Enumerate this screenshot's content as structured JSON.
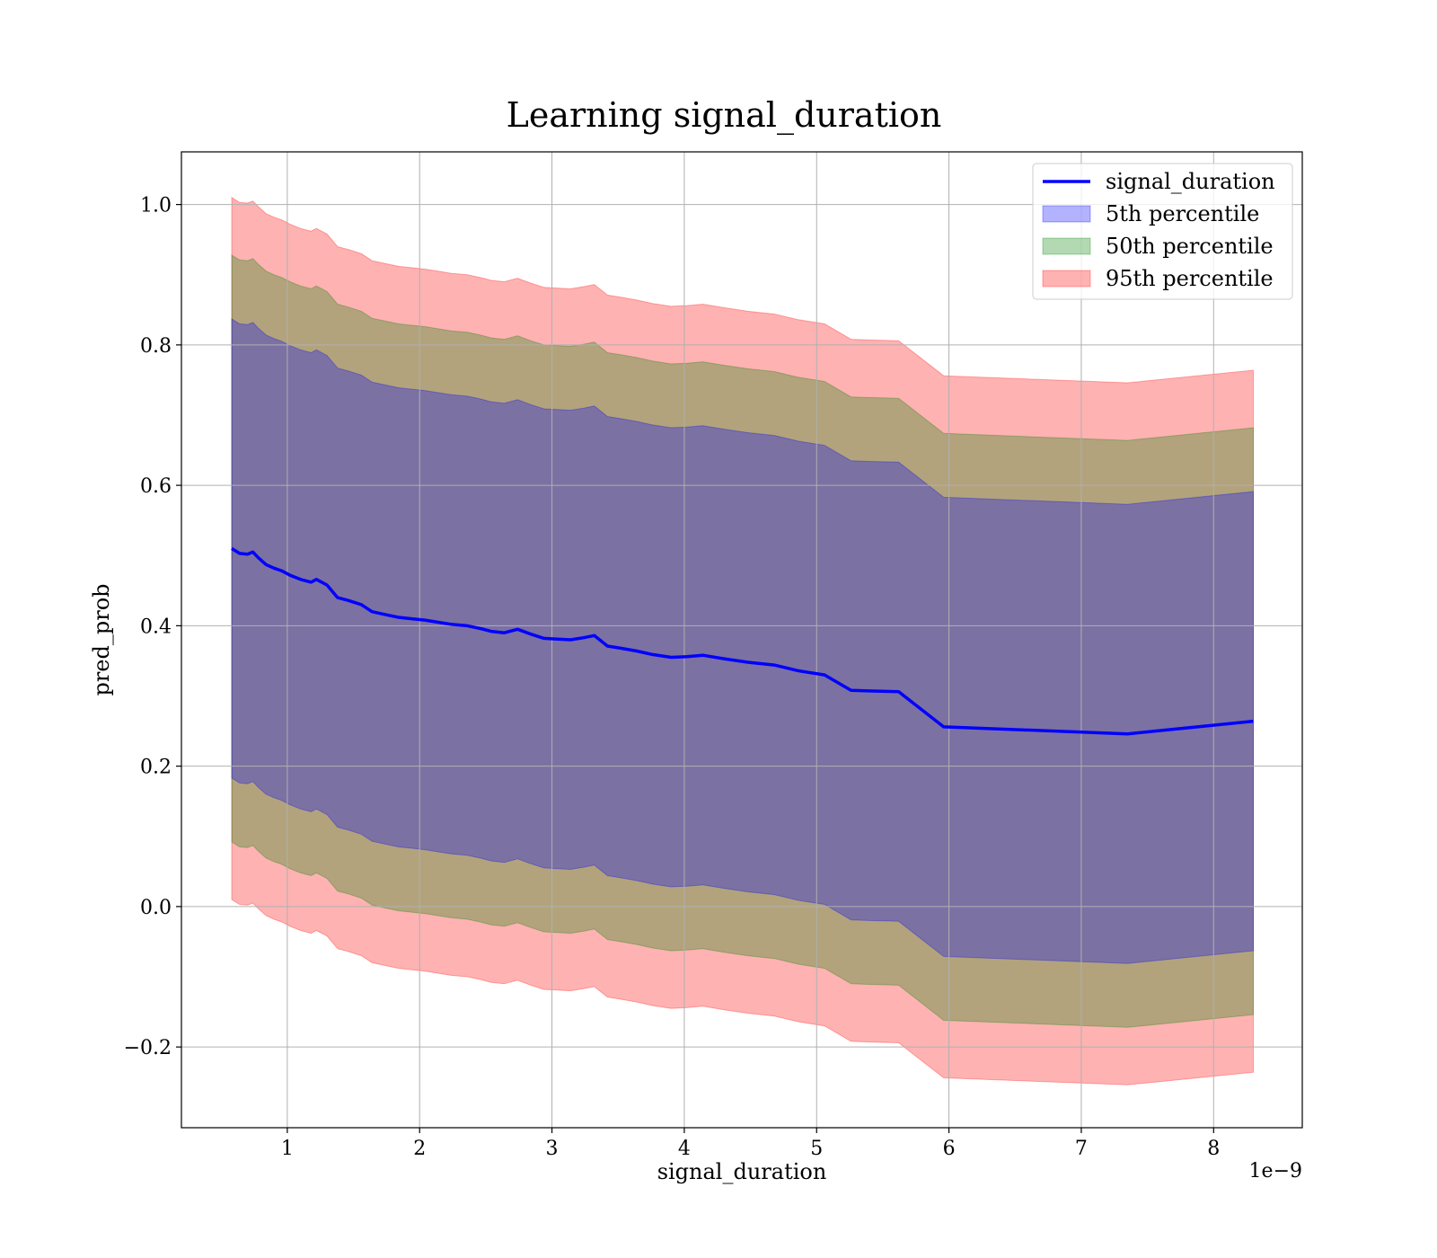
{
  "chart_data": {
    "type": "line",
    "title": "Learning signal_duration",
    "xlabel": "signal_duration",
    "ylabel": "pred_prob",
    "x_offset_text": "1e−9",
    "xlim": [
      0.2,
      8.67
    ],
    "ylim": [
      -0.315,
      1.075
    ],
    "grid": true,
    "legend_position": "top-right",
    "x_ticks": [
      {
        "value": 1,
        "label": "1"
      },
      {
        "value": 2,
        "label": "2"
      },
      {
        "value": 3,
        "label": "3"
      },
      {
        "value": 4,
        "label": "4"
      },
      {
        "value": 5,
        "label": "5"
      },
      {
        "value": 6,
        "label": "6"
      },
      {
        "value": 7,
        "label": "7"
      },
      {
        "value": 8,
        "label": "8"
      }
    ],
    "y_ticks": [
      {
        "value": -0.2,
        "label": "−0.2"
      },
      {
        "value": 0.0,
        "label": "0.0"
      },
      {
        "value": 0.2,
        "label": "0.2"
      },
      {
        "value": 0.4,
        "label": "0.4"
      },
      {
        "value": 0.6,
        "label": "0.6"
      },
      {
        "value": 0.8,
        "label": "0.8"
      },
      {
        "value": 1.0,
        "label": "1.0"
      }
    ],
    "colors": {
      "line": "#0000ff",
      "p5": "#0000ff",
      "p50": "#008000",
      "p95": "#ff0000"
    },
    "x": [
      0.58,
      0.64,
      0.7,
      0.74,
      0.78,
      0.84,
      0.9,
      0.96,
      1.02,
      1.1,
      1.18,
      1.22,
      1.3,
      1.38,
      1.46,
      1.56,
      1.64,
      1.74,
      1.84,
      1.94,
      2.04,
      2.14,
      2.24,
      2.36,
      2.46,
      2.54,
      2.64,
      2.74,
      2.84,
      2.94,
      3.04,
      3.14,
      3.24,
      3.32,
      3.42,
      3.52,
      3.64,
      3.76,
      3.9,
      4.02,
      4.14,
      4.3,
      4.48,
      4.68,
      4.86,
      5.06,
      5.26,
      5.42,
      5.62,
      5.96,
      7.35,
      8.3
    ],
    "series": [
      {
        "name": "signal_duration",
        "values": [
          0.51,
          0.503,
          0.502,
          0.505,
          0.497,
          0.487,
          0.482,
          0.478,
          0.472,
          0.466,
          0.462,
          0.466,
          0.458,
          0.44,
          0.436,
          0.43,
          0.42,
          0.416,
          0.412,
          0.41,
          0.408,
          0.405,
          0.402,
          0.4,
          0.396,
          0.392,
          0.39,
          0.395,
          0.388,
          0.382,
          0.381,
          0.38,
          0.383,
          0.386,
          0.371,
          0.368,
          0.364,
          0.359,
          0.355,
          0.356,
          0.358,
          0.353,
          0.348,
          0.344,
          0.336,
          0.33,
          0.308,
          0.307,
          0.306,
          0.256,
          0.246,
          0.264
        ]
      }
    ],
    "bands": [
      {
        "name": "5th percentile",
        "half_width": 0.327
      },
      {
        "name": "50th percentile",
        "half_width": 0.418
      },
      {
        "name": "95th percentile",
        "half_width": 0.5
      }
    ]
  }
}
